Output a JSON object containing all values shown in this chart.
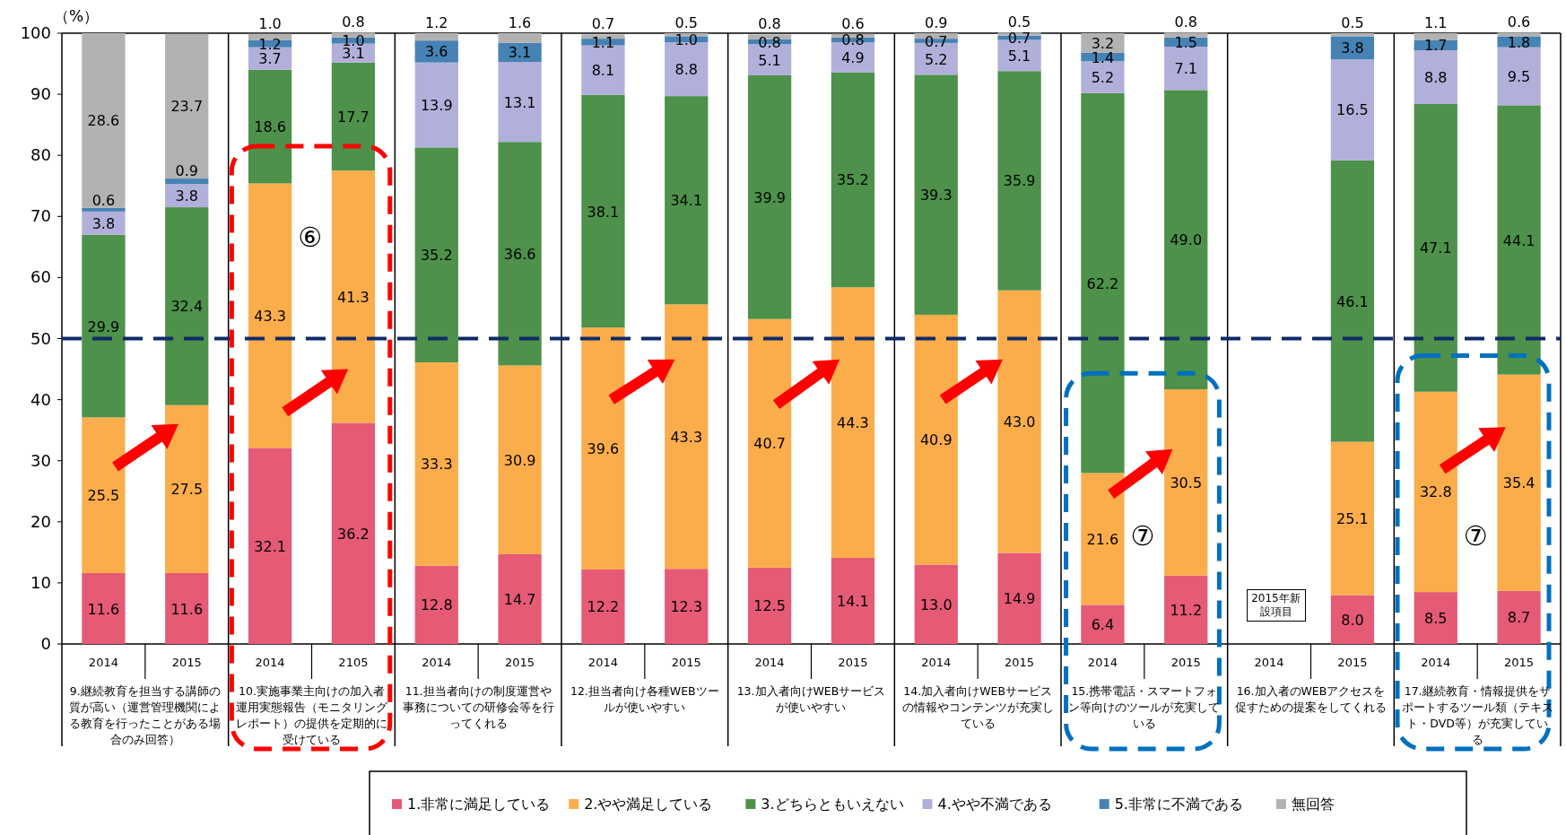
{
  "chart_data": {
    "type": "bar",
    "stacked": true,
    "ylabel": "（%）",
    "categories": [
      "2014",
      "2015",
      "2014",
      "2105",
      "2014",
      "2015",
      "2014",
      "2015",
      "2014",
      "2015",
      "2014",
      "2015",
      "2014",
      "2015",
      "2014",
      "2015",
      "2014",
      "2015"
    ],
    "series": [
      {
        "name": "1.非常に満足している",
        "color": "#e55a75",
        "values": [
          11.6,
          11.6,
          32.1,
          36.2,
          12.8,
          14.7,
          12.2,
          12.3,
          12.5,
          14.1,
          13.0,
          14.9,
          6.4,
          11.2,
          null,
          8.0,
          8.5,
          8.7
        ],
        "value_labels": [
          "11.6",
          "11.6",
          "32.1",
          "36.2",
          "12.8",
          "14.7",
          "12.2",
          "12.3",
          "12.5",
          "14.1",
          "13.0",
          "14.9",
          "6.4",
          "11.2",
          null,
          "8.0",
          "8.5",
          "8.7"
        ]
      },
      {
        "name": "2.やや満足している",
        "color": "#fbad4b",
        "values": [
          25.5,
          27.5,
          43.3,
          41.3,
          33.3,
          30.9,
          39.6,
          43.3,
          40.7,
          44.3,
          40.9,
          43.0,
          21.6,
          30.5,
          null,
          25.1,
          32.8,
          35.4
        ],
        "value_labels": [
          "25.5",
          "27.5",
          "43.3",
          "41.3",
          "33.3",
          "30.9",
          "39.6",
          "43.3",
          "40.7",
          "44.3",
          "40.9",
          "43.0",
          "21.6",
          "30.5",
          null,
          "25.1",
          "32.8",
          "35.4"
        ]
      },
      {
        "name": "3.どちらともいえない",
        "color": "#4d914a",
        "values": [
          29.9,
          32.4,
          18.6,
          17.7,
          35.2,
          36.6,
          38.1,
          34.1,
          39.9,
          35.2,
          39.3,
          35.9,
          62.2,
          49.0,
          null,
          46.1,
          47.1,
          44.1
        ],
        "value_labels": [
          "29.9",
          "32.4",
          "18.6",
          "17.7",
          "35.2",
          "36.6",
          "38.1",
          "34.1",
          "39.9",
          "35.2",
          "39.3",
          "35.9",
          "62.2",
          "49.0",
          null,
          "46.1",
          "47.1",
          "44.1"
        ]
      },
      {
        "name": "4.やや不満である",
        "color": "#b1b0da",
        "values": [
          3.8,
          3.8,
          3.7,
          3.1,
          13.9,
          13.1,
          8.1,
          8.8,
          5.1,
          4.9,
          5.2,
          5.1,
          5.2,
          7.1,
          null,
          16.5,
          8.8,
          9.5
        ],
        "value_labels": [
          "3.8",
          "3.8",
          "3.7",
          "3.1",
          "13.9",
          "13.1",
          "8.1",
          "8.8",
          "5.1",
          "4.9",
          "5.2",
          "5.1",
          "5.2",
          "7.1",
          null,
          "16.5",
          "8.8",
          "9.5"
        ]
      },
      {
        "name": "5.非常に不満である",
        "color": "#4682b4",
        "values": [
          0.6,
          0.9,
          1.2,
          1.0,
          3.6,
          3.1,
          1.1,
          1.0,
          0.8,
          0.8,
          0.7,
          0.7,
          1.4,
          1.5,
          null,
          3.8,
          1.7,
          1.8
        ],
        "value_labels": [
          "0.6",
          "0.9",
          "1.2",
          "1.0",
          "3.6",
          "3.1",
          "1.1",
          "1.0",
          "0.8",
          "0.8",
          "0.7",
          "0.7",
          "1.4",
          "1.5",
          null,
          "3.8",
          "1.7",
          "1.8"
        ]
      },
      {
        "name": "無回答",
        "color": "#b2b2b2",
        "values": [
          28.6,
          23.7,
          1.0,
          0.8,
          1.2,
          1.6,
          0.7,
          0.5,
          0.8,
          0.6,
          0.9,
          0.5,
          3.2,
          0.8,
          null,
          0.5,
          1.1,
          0.6
        ],
        "value_labels": [
          "28.6",
          "23.7",
          "1.0",
          "0.8",
          "1.2",
          "1.6",
          "0.7",
          "0.5",
          "0.8",
          "0.6",
          "0.9",
          "0.5",
          "3.2",
          "0.8",
          null,
          "0.5",
          "1.1",
          "0.6"
        ]
      }
    ],
    "ylim": [
      0,
      100
    ],
    "yticks": [
      0,
      10,
      20,
      30,
      40,
      50,
      60,
      70,
      80,
      90,
      100
    ],
    "legend": "bottom",
    "grid": false,
    "ref_lines": [
      {
        "axis": "y",
        "value": 50,
        "color": "#0f2a66",
        "line_style": "dashed"
      }
    ],
    "annotations": [
      "9.継続教育を担当する講師の質が高い（運営管理機関による教育を行ったことがある場合のみ回答）",
      "10.実施事業主向けの加入者運用実態報告（モニタリングレポート）の提供を定期的に受けている",
      "11.担当者向けの制度運営や事務についての研修会等を行ってくれる",
      "12.担当者向け各種WEBツールが使いやすい",
      "13.加入者向けWEBサービスが使いやすい",
      "14.加入者向けWEBサービスの情報やコンテンツが充実している",
      "15.携帯電話・スマートフォン等向けのツールが充実している",
      "16.加入者のWEBアクセスを促すための提案をしてくれる",
      "17.継続教育・情報提供をサポートするツール類（テキスト・DVD等）が充実している",
      "⑥",
      "⑦",
      "⑦",
      "2015年新設項目"
    ]
  }
}
